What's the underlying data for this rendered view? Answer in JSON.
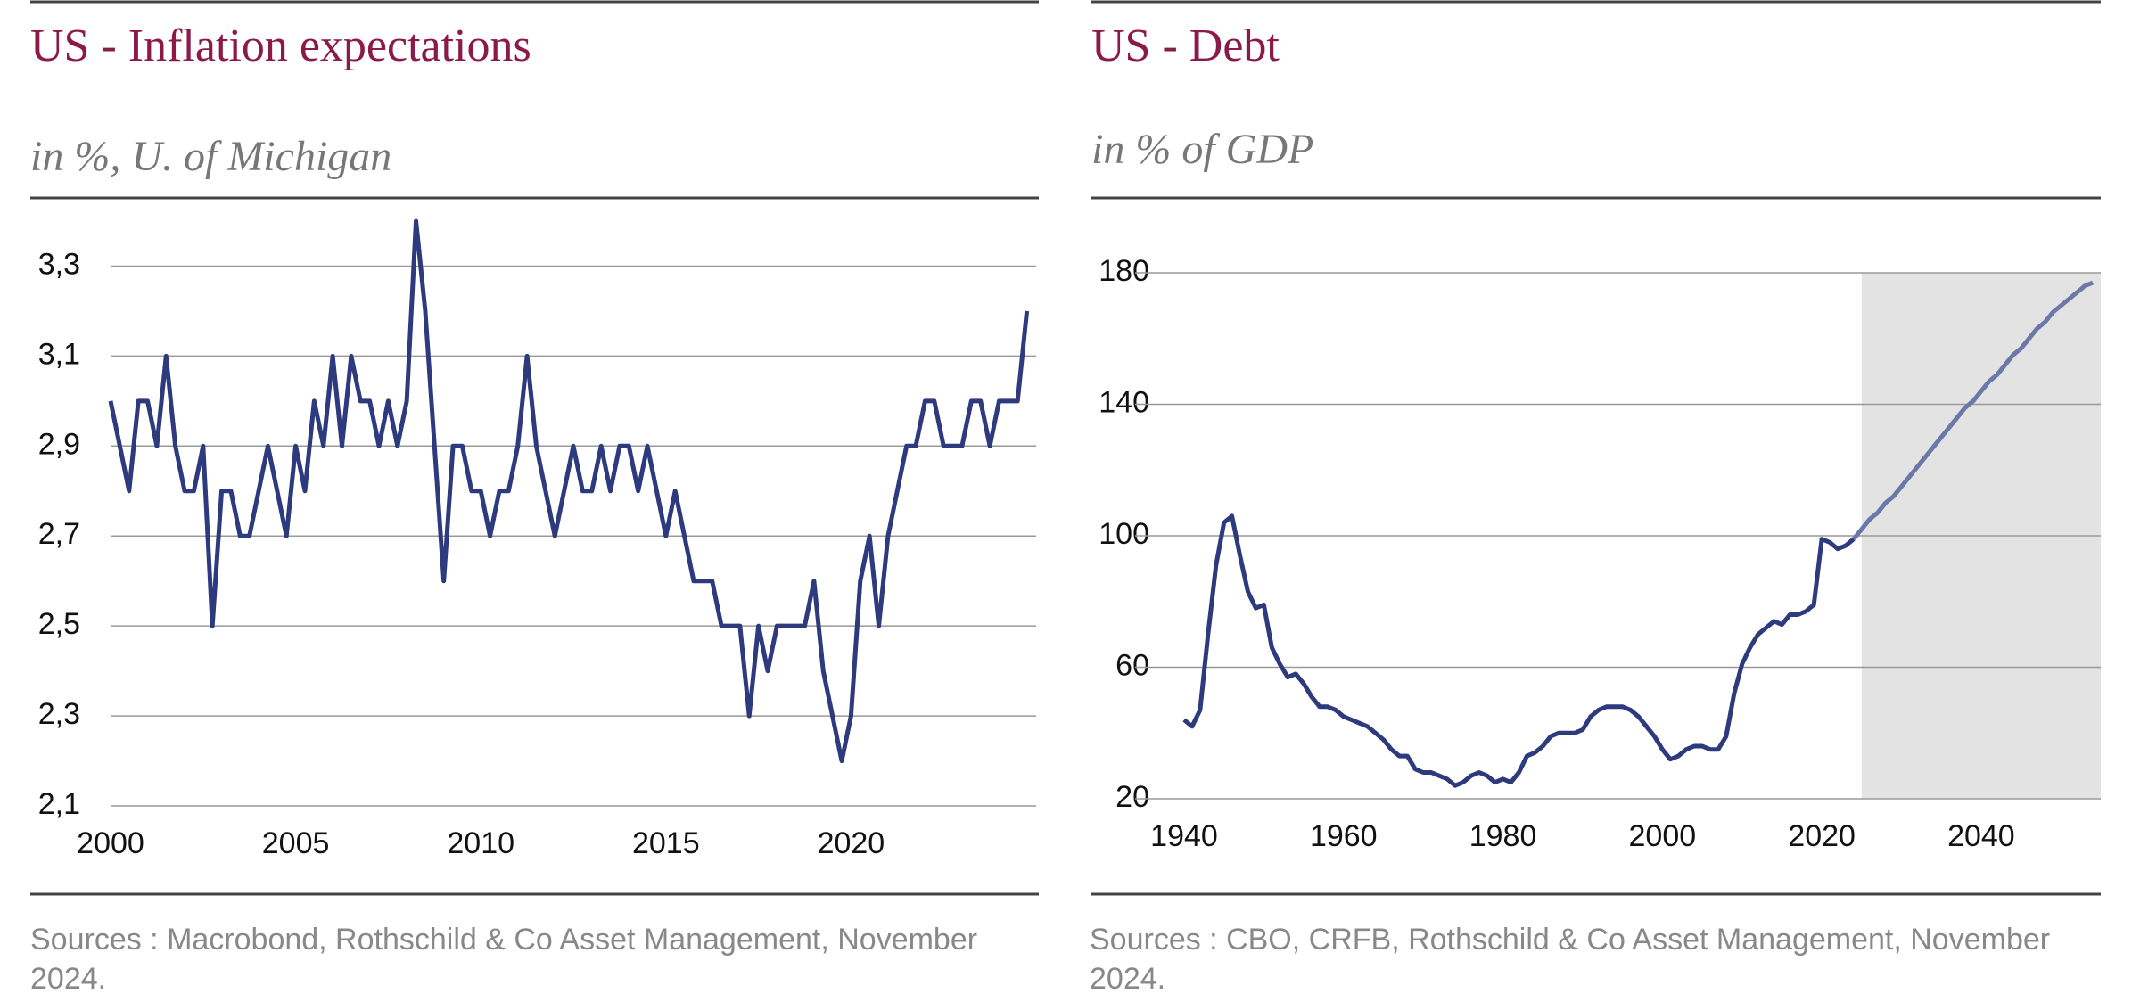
{
  "chart_data": [
    {
      "type": "line",
      "title": "US - Inflation expectations",
      "subtitle": "in %, U. of Michigan",
      "source": "Sources : Macrobond, Rothschild & Co Asset Management, November 2024.",
      "xlim": [
        2000,
        2025
      ],
      "xticks": [
        2000,
        2005,
        2010,
        2015,
        2020
      ],
      "ylim": [
        2.1,
        3.4
      ],
      "yticks": [
        {
          "value": 2.1,
          "label": "2,1"
        },
        {
          "value": 2.3,
          "label": "2,3"
        },
        {
          "value": 2.5,
          "label": "2,5"
        },
        {
          "value": 2.7,
          "label": "2,7"
        },
        {
          "value": 2.9,
          "label": "2,9"
        },
        {
          "value": 3.1,
          "label": "3,1"
        },
        {
          "value": 3.3,
          "label": "3,3"
        }
      ],
      "grid": true,
      "series": [
        {
          "color": "#2e3a7e",
          "x": [
            2000,
            2000.25,
            2000.5,
            2000.75,
            2001,
            2001.25,
            2001.5,
            2001.75,
            2002,
            2002.25,
            2002.5,
            2002.75,
            2003,
            2003.25,
            2003.5,
            2003.75,
            2004,
            2004.25,
            2004.5,
            2004.75,
            2005,
            2005.25,
            2005.5,
            2005.75,
            2006,
            2006.25,
            2006.5,
            2006.75,
            2007,
            2007.25,
            2007.5,
            2007.75,
            2008,
            2008.25,
            2008.5,
            2008.75,
            2009,
            2009.25,
            2009.5,
            2009.75,
            2010,
            2010.25,
            2010.5,
            2010.75,
            2011,
            2011.25,
            2011.5,
            2011.75,
            2012,
            2012.25,
            2012.5,
            2012.75,
            2013,
            2013.25,
            2013.5,
            2013.75,
            2014,
            2014.25,
            2014.5,
            2014.75,
            2015,
            2015.25,
            2015.5,
            2015.75,
            2016,
            2016.25,
            2016.5,
            2016.75,
            2017,
            2017.25,
            2017.5,
            2017.75,
            2018,
            2018.25,
            2018.5,
            2018.75,
            2019,
            2019.25,
            2019.5,
            2019.75,
            2020,
            2020.25,
            2020.5,
            2020.75,
            2021,
            2021.25,
            2021.5,
            2021.75,
            2022,
            2022.25,
            2022.5,
            2022.75,
            2023,
            2023.25,
            2023.5,
            2023.75,
            2024,
            2024.25,
            2024.5,
            2024.75
          ],
          "values": [
            3.0,
            2.9,
            2.8,
            3.0,
            3.0,
            2.9,
            3.1,
            2.9,
            2.8,
            2.8,
            2.9,
            2.5,
            2.8,
            2.8,
            2.7,
            2.7,
            2.8,
            2.9,
            2.8,
            2.7,
            2.9,
            2.8,
            3.0,
            2.9,
            3.1,
            2.9,
            3.1,
            3.0,
            3.0,
            2.9,
            3.0,
            2.9,
            3.0,
            3.4,
            3.2,
            2.9,
            2.6,
            2.9,
            2.9,
            2.8,
            2.8,
            2.7,
            2.8,
            2.8,
            2.9,
            3.1,
            2.9,
            2.8,
            2.7,
            2.8,
            2.9,
            2.8,
            2.8,
            2.9,
            2.8,
            2.9,
            2.9,
            2.8,
            2.9,
            2.8,
            2.7,
            2.8,
            2.7,
            2.6,
            2.6,
            2.6,
            2.5,
            2.5,
            2.5,
            2.3,
            2.5,
            2.4,
            2.5,
            2.5,
            2.5,
            2.5,
            2.6,
            2.4,
            2.3,
            2.2,
            2.3,
            2.6,
            2.7,
            2.5,
            2.7,
            2.8,
            2.9,
            2.9,
            3.0,
            3.0,
            2.9,
            2.9,
            2.9,
            3.0,
            3.0,
            2.9,
            3.0,
            3.0,
            3.0,
            3.2
          ]
        }
      ]
    },
    {
      "type": "line",
      "title": "US - Debt",
      "subtitle": "in % of GDP",
      "source": "Sources : CBO, CRFB, Rothschild & Co Asset Management, November 2024.",
      "xlim": [
        1940,
        2055
      ],
      "xticks": [
        1940,
        1960,
        1980,
        2000,
        2020,
        2040
      ],
      "ylim": [
        20,
        180
      ],
      "yticks": [
        20,
        60,
        100,
        140,
        180
      ],
      "grid": true,
      "shaded_x": [
        2025,
        2055
      ],
      "shade_color": "#e3e3e3",
      "series": [
        {
          "color": "#2e3a7e",
          "x": [
            1940,
            1941,
            1942,
            1943,
            1944,
            1945,
            1946,
            1947,
            1948,
            1949,
            1950,
            1951,
            1952,
            1953,
            1954,
            1955,
            1956,
            1957,
            1958,
            1959,
            1960,
            1961,
            1962,
            1963,
            1964,
            1965,
            1966,
            1967,
            1968,
            1969,
            1970,
            1971,
            1972,
            1973,
            1974,
            1975,
            1976,
            1977,
            1978,
            1979,
            1980,
            1981,
            1982,
            1983,
            1984,
            1985,
            1986,
            1987,
            1988,
            1989,
            1990,
            1991,
            1992,
            1993,
            1994,
            1995,
            1996,
            1997,
            1998,
            1999,
            2000,
            2001,
            2002,
            2003,
            2004,
            2005,
            2006,
            2007,
            2008,
            2009,
            2010,
            2011,
            2012,
            2013,
            2014,
            2015,
            2016,
            2017,
            2018,
            2019,
            2020,
            2021,
            2022,
            2023,
            2024
          ],
          "values": [
            44,
            42,
            47,
            70,
            91,
            104,
            106,
            94,
            83,
            78,
            79,
            66,
            61,
            57,
            58,
            55,
            51,
            48,
            48,
            47,
            45,
            44,
            43,
            42,
            40,
            38,
            35,
            33,
            33,
            29,
            28,
            28,
            27,
            26,
            24,
            25,
            27,
            28,
            27,
            25,
            26,
            25,
            28,
            33,
            34,
            36,
            39,
            40,
            40,
            40,
            41,
            45,
            47,
            48,
            48,
            48,
            47,
            45,
            42,
            39,
            35,
            32,
            33,
            35,
            36,
            36,
            35,
            35,
            39,
            52,
            61,
            66,
            70,
            72,
            74,
            73,
            76,
            76,
            77,
            79,
            99,
            98,
            96,
            97,
            99
          ]
        },
        {
          "color": "#6b79a8",
          "x": [
            2024,
            2025,
            2026,
            2027,
            2028,
            2029,
            2030,
            2031,
            2032,
            2033,
            2034,
            2035,
            2036,
            2037,
            2038,
            2039,
            2040,
            2041,
            2042,
            2043,
            2044,
            2045,
            2046,
            2047,
            2048,
            2049,
            2050,
            2051,
            2052,
            2053,
            2054
          ],
          "values": [
            99,
            102,
            105,
            107,
            110,
            112,
            115,
            118,
            121,
            124,
            127,
            130,
            133,
            136,
            139,
            141,
            144,
            147,
            149,
            152,
            155,
            157,
            160,
            163,
            165,
            168,
            170,
            172,
            174,
            176,
            177
          ]
        }
      ]
    }
  ]
}
